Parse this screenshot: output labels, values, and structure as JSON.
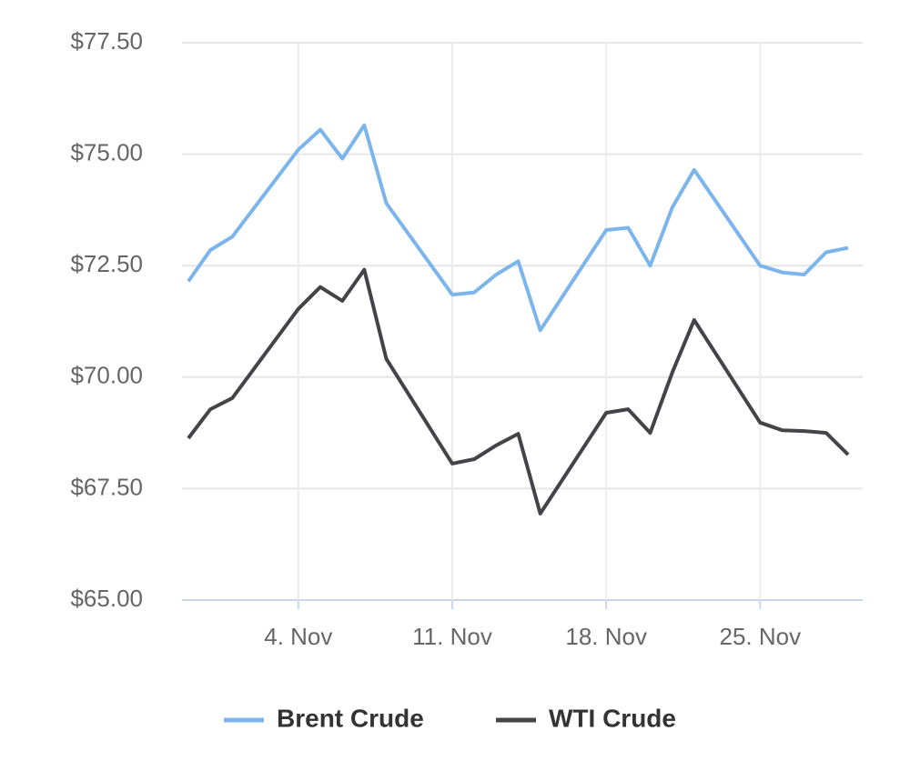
{
  "chart_data": {
    "type": "line",
    "x": [
      "10-30",
      "10-31",
      "11-01",
      "11-04",
      "11-05",
      "11-06",
      "11-07",
      "11-08",
      "11-11",
      "11-12",
      "11-13",
      "11-14",
      "11-15",
      "11-18",
      "11-19",
      "11-20",
      "11-21",
      "11-22",
      "11-25",
      "11-26",
      "11-27",
      "11-28",
      "11-29"
    ],
    "series": [
      {
        "name": "Brent Crude",
        "color": "#7cb5ec",
        "values": [
          72.15,
          72.85,
          73.15,
          75.1,
          75.55,
          74.9,
          75.65,
          73.9,
          71.85,
          71.9,
          72.3,
          72.6,
          71.05,
          73.3,
          73.35,
          72.5,
          73.8,
          74.65,
          72.5,
          72.35,
          72.3,
          72.8,
          72.9
        ]
      },
      {
        "name": "WTI Crude",
        "color": "#434348",
        "values": [
          68.63,
          69.28,
          69.53,
          71.53,
          72.02,
          71.71,
          72.41,
          70.41,
          68.06,
          68.16,
          68.47,
          68.73,
          66.94,
          69.2,
          69.28,
          68.75,
          70.1,
          71.28,
          68.98,
          68.81,
          68.79,
          68.75,
          68.26
        ]
      }
    ],
    "xlim": [
      "10-30",
      "11-29"
    ],
    "xticks": [
      {
        "value": "11-04",
        "label": "4. Nov"
      },
      {
        "value": "11-11",
        "label": "11. Nov"
      },
      {
        "value": "11-18",
        "label": "18. Nov"
      },
      {
        "value": "11-25",
        "label": "25. Nov"
      }
    ],
    "ylim": [
      65,
      77.5
    ],
    "yticks": [
      {
        "value": 65,
        "label": "$65.00"
      },
      {
        "value": 67.5,
        "label": "$67.50"
      },
      {
        "value": 70,
        "label": "$70.00"
      },
      {
        "value": 72.5,
        "label": "$72.50"
      },
      {
        "value": 75,
        "label": "$75.00"
      },
      {
        "value": 77.5,
        "label": "$77.50"
      }
    ],
    "grid": true,
    "legend": "bottom"
  }
}
